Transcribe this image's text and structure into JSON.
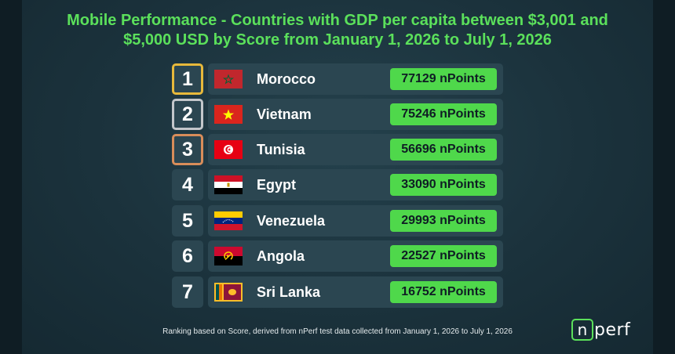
{
  "header": {
    "title": "Mobile Performance - Countries with GDP per capita between $3,001 and $5,000 USD by Score from January 1, 2026 to July 1, 2026"
  },
  "ranking": [
    {
      "rank": "1",
      "country": "Morocco",
      "score": "77129 nPoints",
      "medal": "gold",
      "flag": "morocco-flag"
    },
    {
      "rank": "2",
      "country": "Vietnam",
      "score": "75246 nPoints",
      "medal": "silver",
      "flag": "vietnam-flag"
    },
    {
      "rank": "3",
      "country": "Tunisia",
      "score": "56696 nPoints",
      "medal": "bronze",
      "flag": "tunisia-flag"
    },
    {
      "rank": "4",
      "country": "Egypt",
      "score": "33090 nPoints",
      "medal": "none",
      "flag": "egypt-flag"
    },
    {
      "rank": "5",
      "country": "Venezuela",
      "score": "29993 nPoints",
      "medal": "none",
      "flag": "venezuela-flag"
    },
    {
      "rank": "6",
      "country": "Angola",
      "score": "22527 nPoints",
      "medal": "none",
      "flag": "angola-flag"
    },
    {
      "rank": "7",
      "country": "Sri Lanka",
      "score": "16752 nPoints",
      "medal": "none",
      "flag": "sri-lanka-flag"
    }
  ],
  "footnote": "Ranking based on Score, derived from nPerf test data collected from January 1, 2026 to July 1, 2026",
  "logo": {
    "mark": "n",
    "rest": "perf"
  },
  "colors": {
    "accent_green": "#4fd84b",
    "title_green": "#5be05b",
    "gold": "#e7b93b",
    "silver": "#c3c7cb",
    "bronze": "#d88d5a"
  }
}
